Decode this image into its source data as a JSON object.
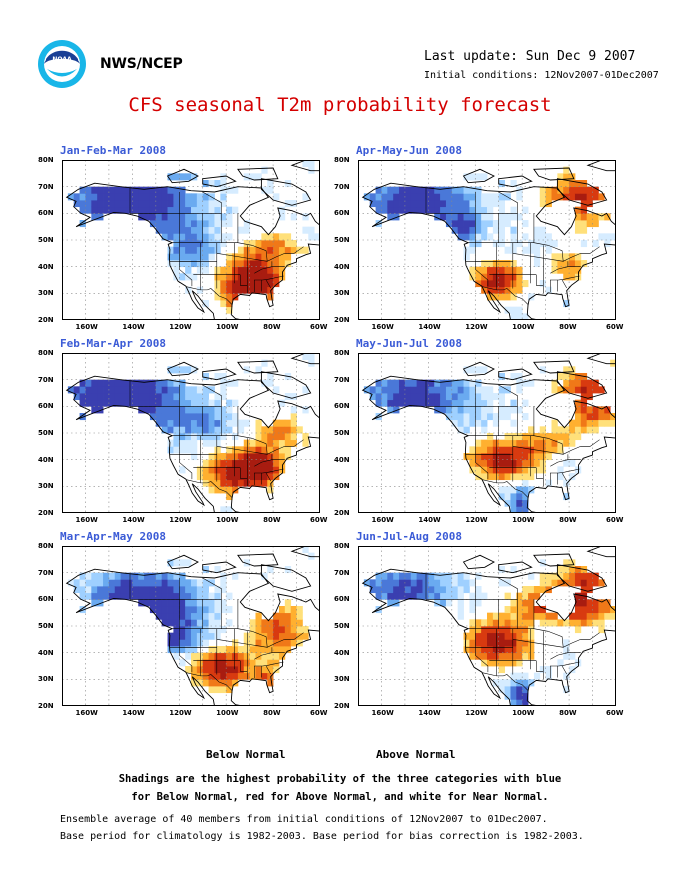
{
  "header": {
    "org": "NWS/NCEP",
    "last_update": "Last update: Sun Dec 9 2007",
    "initial_conditions": "Initial conditions: 12Nov2007-01Dec2007",
    "title": "CFS seasonal T2m probability forecast"
  },
  "panels": [
    {
      "title": "Jan-Feb-Mar 2008",
      "scheme": "jfm"
    },
    {
      "title": "Apr-May-Jun 2008",
      "scheme": "amj"
    },
    {
      "title": "Feb-Mar-Apr 2008",
      "scheme": "fma"
    },
    {
      "title": "May-Jun-Jul 2008",
      "scheme": "mjj"
    },
    {
      "title": "Mar-Apr-May 2008",
      "scheme": "mam"
    },
    {
      "title": "Jun-Jul-Aug 2008",
      "scheme": "jja"
    }
  ],
  "axes": {
    "lat_labels": [
      "80N",
      "70N",
      "60N",
      "50N",
      "40N",
      "30N",
      "20N"
    ],
    "lon_labels": [
      "160W",
      "140W",
      "120W",
      "100W",
      "80W",
      "60W"
    ]
  },
  "legend": {
    "below": "Below Normal",
    "above": "Above Normal"
  },
  "notes": [
    "Shadings are the highest probability of the three categories with blue",
    "for Below Normal, red for Above Normal, and white for Near Normal."
  ],
  "footer": [
    "Ensemble average of 40 members from initial conditions of 12Nov2007 to 01Dec2007.",
    "Base period for climatology is 1982-2003. Base period for bias correction is 1982-2003."
  ],
  "colors": {
    "title": "#d40000",
    "panel_title": "#3b5bd6",
    "blue_scale": [
      "#d6ecff",
      "#9fd0ff",
      "#6aaaf0",
      "#4a78d8",
      "#3a3fb0"
    ],
    "red_scale": [
      "#ffe07a",
      "#ffb030",
      "#f07818",
      "#d83a10",
      "#a81c10"
    ]
  }
}
